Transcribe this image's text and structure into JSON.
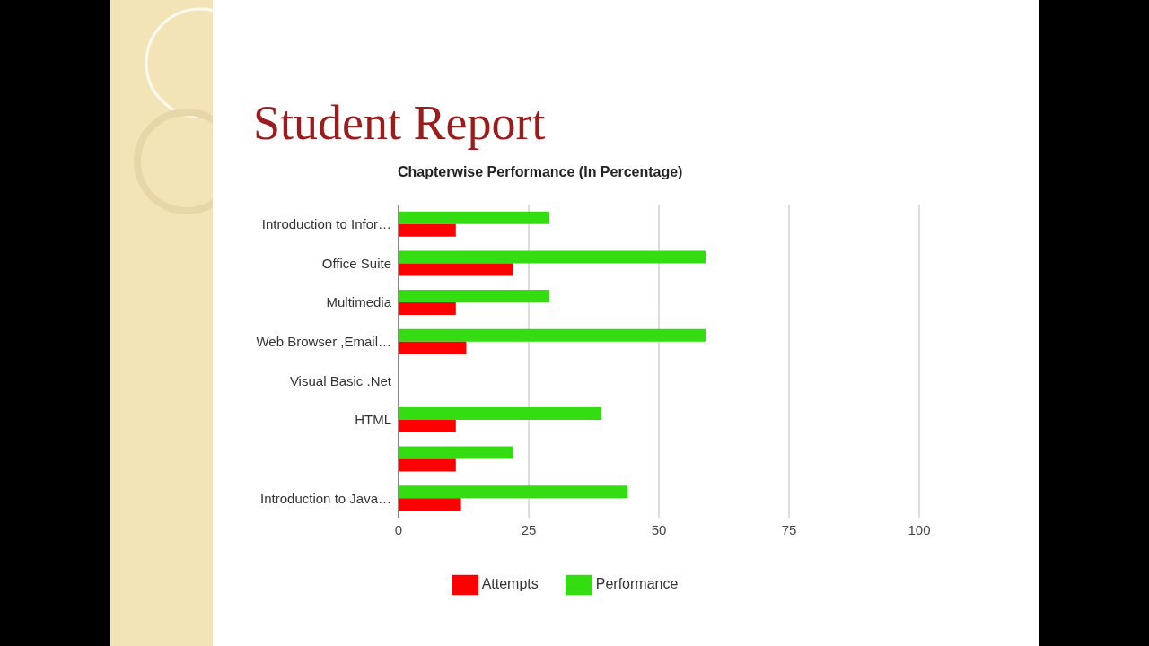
{
  "chart_data": {
    "type": "bar",
    "orientation": "horizontal",
    "title": "Student Report",
    "subtitle": "Chapterwise Performance (In Percentage)",
    "categories": [
      "Introduction to Infor…",
      "Office Suite",
      "Multimedia",
      "Web Browser ,Email…",
      "Visual Basic .Net",
      "HTML",
      null,
      "Introduction to Java…"
    ],
    "series": [
      {
        "name": "Performance",
        "color": "#33dd11",
        "values": [
          29,
          59,
          29,
          59,
          0,
          39,
          22,
          44
        ]
      },
      {
        "name": "Attempts",
        "color": "#ff0000",
        "values": [
          11,
          22,
          11,
          13,
          0,
          11,
          11,
          12
        ]
      }
    ],
    "xlim": [
      0,
      100
    ],
    "xticks": [
      0,
      25,
      50,
      75,
      100
    ],
    "grid": "x",
    "legend": "bottom"
  }
}
